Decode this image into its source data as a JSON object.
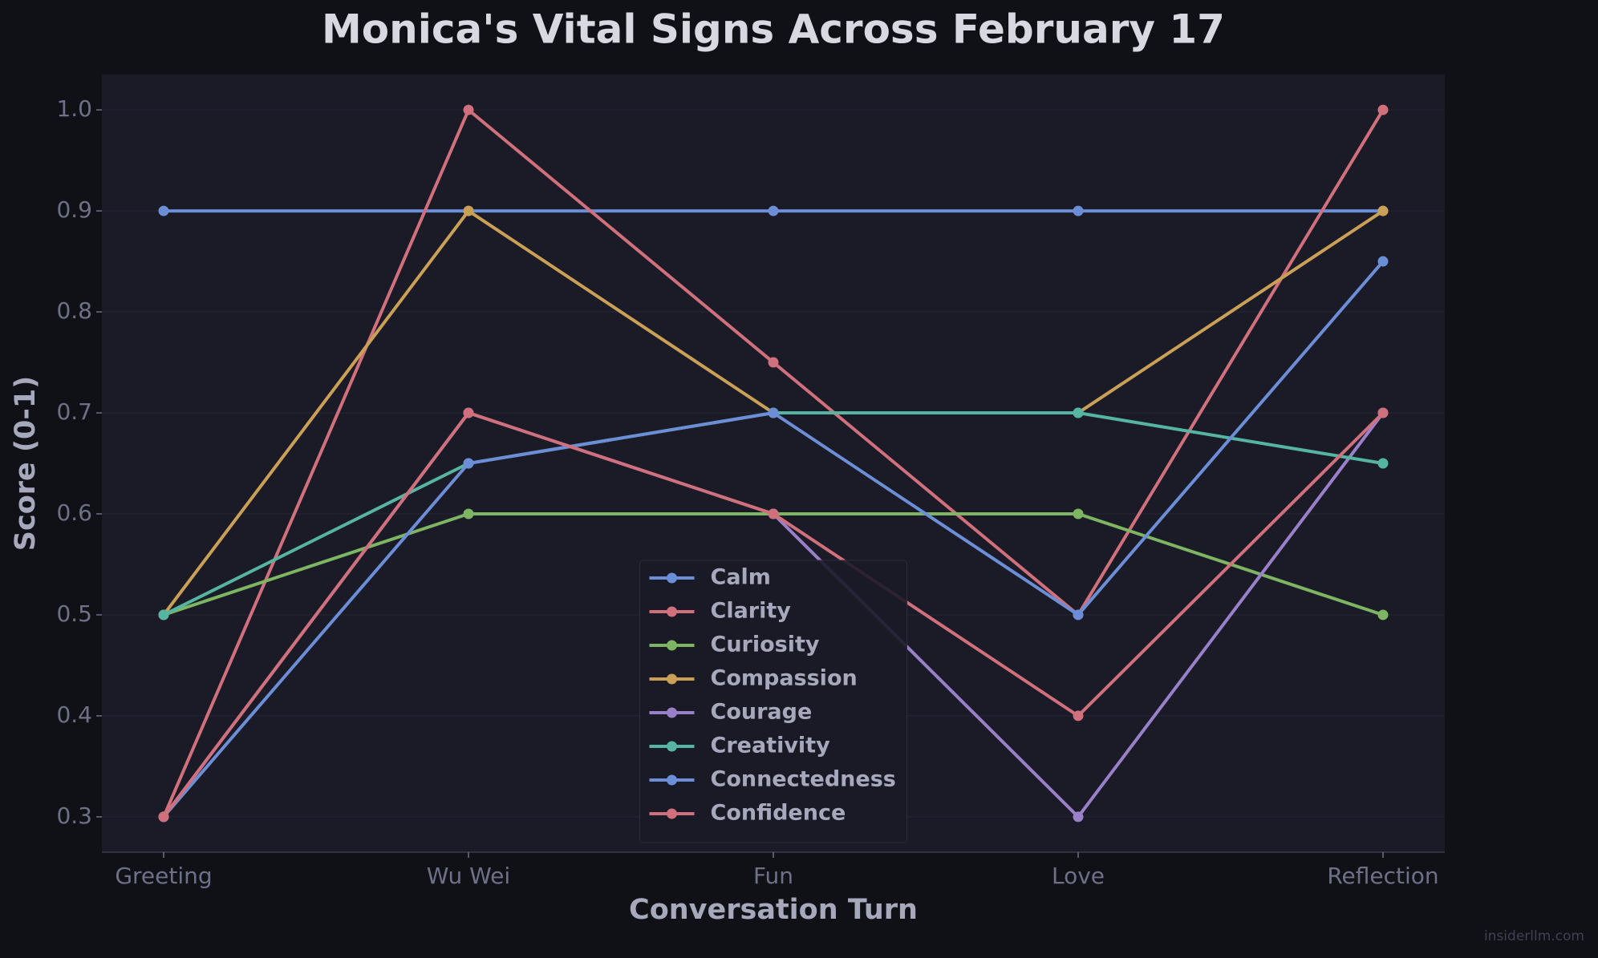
{
  "chart_data": {
    "type": "line",
    "title": "Monica's Vital Signs Across February 17",
    "x_label": "Conversation Turn",
    "y_label": "Score (0-1)",
    "categories": [
      "Greeting",
      "Wu Wei",
      "Fun",
      "Love",
      "Reflection"
    ],
    "series": [
      {
        "name": "Calm",
        "color": "#6b8ed6",
        "values": [
          0.9,
          0.9,
          0.9,
          0.9,
          0.9
        ]
      },
      {
        "name": "Clarity",
        "color": "#d0707c",
        "values": [
          0.3,
          1.0,
          0.75,
          0.5,
          1.0
        ]
      },
      {
        "name": "Curiosity",
        "color": "#7db562",
        "values": [
          0.5,
          0.6,
          0.6,
          0.6,
          0.5
        ]
      },
      {
        "name": "Compassion",
        "color": "#c9a055",
        "values": [
          0.5,
          0.9,
          0.7,
          0.7,
          0.9
        ]
      },
      {
        "name": "Courage",
        "color": "#9a80c8",
        "values": [
          0.3,
          0.7,
          0.6,
          0.3,
          0.7
        ]
      },
      {
        "name": "Creativity",
        "color": "#55b5a2",
        "values": [
          0.5,
          0.65,
          0.7,
          0.7,
          0.65
        ]
      },
      {
        "name": "Connectedness",
        "color": "#6b8ed6",
        "values": [
          0.3,
          0.65,
          0.7,
          0.5,
          0.85
        ]
      },
      {
        "name": "Confidence",
        "color": "#d0707c",
        "values": [
          0.3,
          0.7,
          0.6,
          0.4,
          0.7
        ]
      }
    ],
    "ylim": [
      0.265,
      1.035
    ],
    "yticks": [
      0.3,
      0.4,
      0.5,
      0.6,
      0.7,
      0.8,
      0.9,
      {
        "value": 1,
        "label": "1.0"
      }
    ],
    "grid": true,
    "legend": "lower center",
    "watermark": "insiderllm.com"
  }
}
